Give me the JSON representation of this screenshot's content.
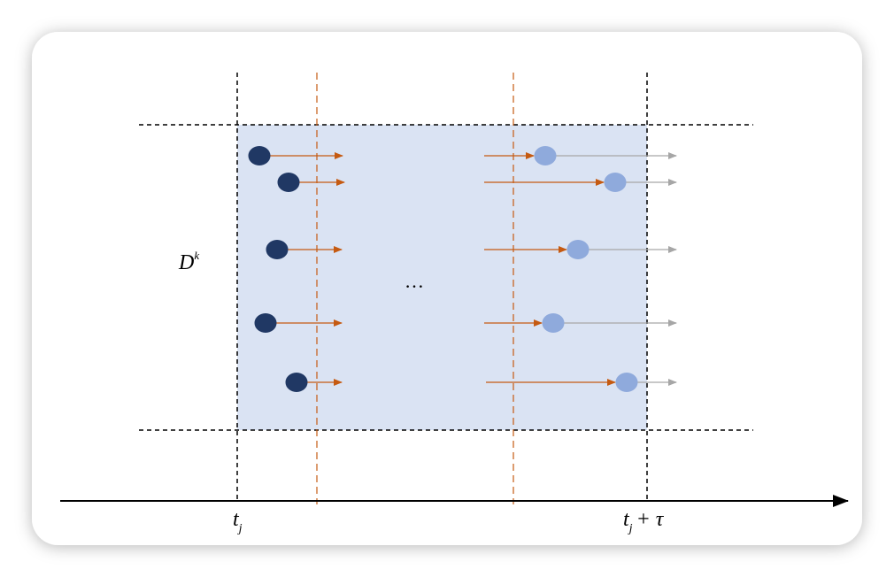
{
  "region_label": {
    "symbol": "D",
    "superscript": "k"
  },
  "ellipsis": "…",
  "time_axis": {
    "start": {
      "symbol": "t",
      "subscript": "j"
    },
    "end": {
      "symbol": "t",
      "subscript": "j",
      "suffix": "+ τ"
    }
  }
}
